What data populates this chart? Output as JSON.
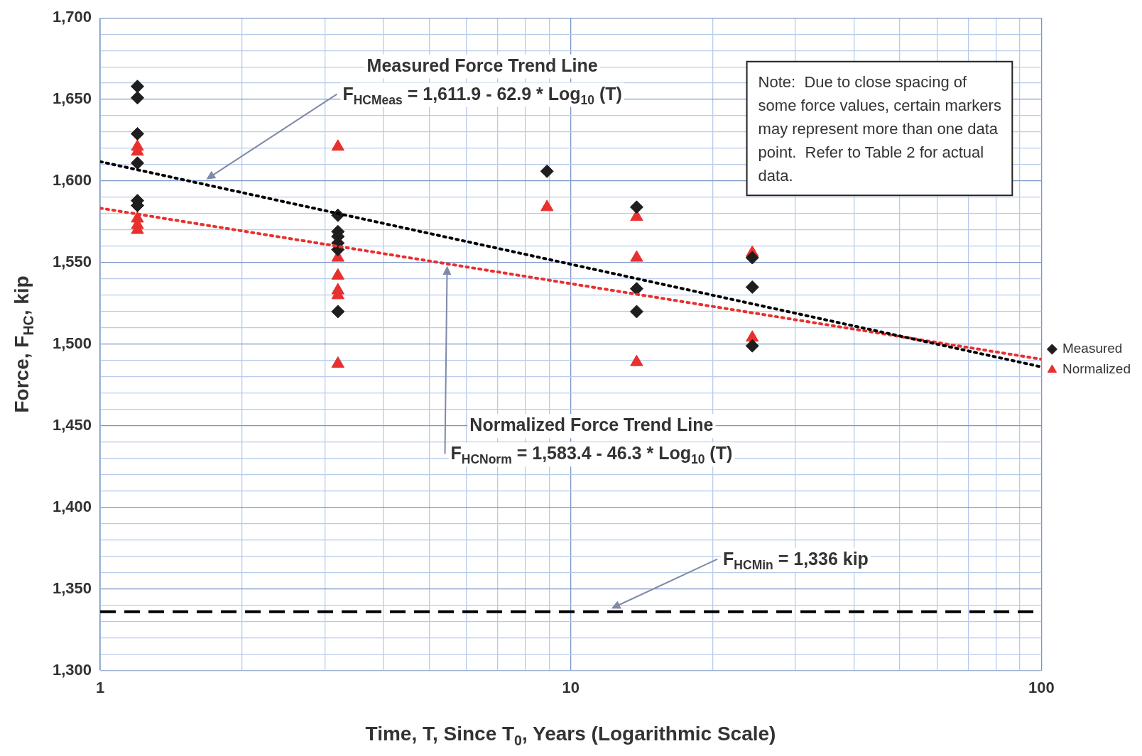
{
  "chart_data": {
    "type": "scatter",
    "xlabel": "Time, T, Since T$_{0}$, Years (Logarithmic Scale)",
    "ylabel": "Force, F$_{HC}$, kip",
    "log": "x",
    "grid": true,
    "legend": "right",
    "xlim": [
      1,
      100
    ],
    "ylim": [
      1300,
      1700
    ],
    "xticks": [
      1,
      {
        "value": 2,
        "label": null
      },
      {
        "value": 3,
        "label": null
      },
      {
        "value": 4,
        "label": null
      },
      {
        "value": 5,
        "label": null
      },
      {
        "value": 6,
        "label": null
      },
      {
        "value": 7,
        "label": null
      },
      {
        "value": 8,
        "label": null
      },
      {
        "value": 9,
        "label": null
      },
      10,
      {
        "value": 20,
        "label": null
      },
      {
        "value": 30,
        "label": null
      },
      {
        "value": 40,
        "label": null
      },
      {
        "value": 50,
        "label": null
      },
      {
        "value": 60,
        "label": null
      },
      {
        "value": 70,
        "label": null
      },
      {
        "value": 80,
        "label": null
      },
      {
        "value": 90,
        "label": null
      },
      100
    ],
    "yticks": [
      {
        "value": 1300,
        "label": "1,300"
      },
      {
        "value": 1310,
        "label": null
      },
      {
        "value": 1320,
        "label": null
      },
      {
        "value": 1330,
        "label": null
      },
      {
        "value": 1340,
        "label": null
      },
      {
        "value": 1350,
        "label": "1,350"
      },
      {
        "value": 1360,
        "label": null
      },
      {
        "value": 1370,
        "label": null
      },
      {
        "value": 1380,
        "label": null
      },
      {
        "value": 1390,
        "label": null
      },
      {
        "value": 1400,
        "label": "1,400"
      },
      {
        "value": 1410,
        "label": null
      },
      {
        "value": 1420,
        "label": null
      },
      {
        "value": 1430,
        "label": null
      },
      {
        "value": 1440,
        "label": null
      },
      {
        "value": 1450,
        "label": "1,450"
      },
      {
        "value": 1460,
        "label": null
      },
      {
        "value": 1470,
        "label": null
      },
      {
        "value": 1480,
        "label": null
      },
      {
        "value": 1490,
        "label": null
      },
      {
        "value": 1500,
        "label": "1,500"
      },
      {
        "value": 1510,
        "label": null
      },
      {
        "value": 1520,
        "label": null
      },
      {
        "value": 1530,
        "label": null
      },
      {
        "value": 1540,
        "label": null
      },
      {
        "value": 1550,
        "label": "1,550"
      },
      {
        "value": 1560,
        "label": null
      },
      {
        "value": 1570,
        "label": null
      },
      {
        "value": 1580,
        "label": null
      },
      {
        "value": 1590,
        "label": null
      },
      {
        "value": 1600,
        "label": "1,600"
      },
      {
        "value": 1610,
        "label": null
      },
      {
        "value": 1620,
        "label": null
      },
      {
        "value": 1630,
        "label": null
      },
      {
        "value": 1640,
        "label": null
      },
      {
        "value": 1650,
        "label": "1,650"
      },
      {
        "value": 1660,
        "label": null
      },
      {
        "value": 1670,
        "label": null
      },
      {
        "value": 1680,
        "label": null
      },
      {
        "value": 1690,
        "label": null
      },
      {
        "value": 1700,
        "label": "1,700"
      }
    ],
    "series": [
      {
        "type": "line",
        "color": "#000000",
        "line_style": "dotted",
        "marker": "none",
        "x": [
          1,
          100
        ],
        "values": [
          1611.9,
          1486.1
        ]
      },
      {
        "type": "line",
        "color": "#e8302e",
        "line_style": "dotted",
        "marker": "none",
        "x": [
          1,
          100
        ],
        "values": [
          1583.4,
          1490.8
        ]
      },
      {
        "name": "Measured",
        "type": "scatter",
        "color": "#1e1e1e",
        "marker": "diamond",
        "x": [
          1.2,
          1.2,
          1.2,
          1.2,
          1.2,
          1.2,
          3.2,
          3.2,
          3.2,
          3.2,
          3.2,
          3.2,
          8.9,
          13.8,
          13.8,
          13.8,
          24.3,
          24.3,
          24.3
        ],
        "values": [
          1658,
          1651,
          1629,
          1611,
          1588,
          1585,
          1579,
          1569,
          1566,
          1562,
          1558,
          1520,
          1606,
          1584,
          1534,
          1520,
          1553,
          1535,
          1499
        ]
      },
      {
        "name": "Normalized",
        "type": "scatter",
        "color": "#e8302e",
        "marker": "triangle",
        "x": [
          1.2,
          1.2,
          1.2,
          1.2,
          1.2,
          3.2,
          3.2,
          3.2,
          3.2,
          3.2,
          3.2,
          8.9,
          13.8,
          13.8,
          13.8,
          24.3,
          24.3
        ],
        "values": [
          1621,
          1618,
          1577,
          1573,
          1570,
          1621,
          1553,
          1542,
          1533,
          1530,
          1488,
          1584,
          1578,
          1553,
          1489,
          1556,
          1504
        ]
      }
    ],
    "ref_lines": [
      {
        "axis": "y",
        "value": 1336,
        "color": "#000000",
        "line_style": "dashed"
      }
    ],
    "annotations": [
      "Measured Force Trend Line\nF$_{HCMeas}$ = 1,611.9 - 62.9 * Log$_{10}$ (T)",
      "Normalized Force Trend Line\nF$_{HCNorm}$ = 1,583.4 - 46.3 * Log$_{10}$ (T)",
      "F$_{HCMin}$ = 1,336 kip",
      "Note:  Due to close spacing of some force values, certain markers may represent more than one data point.  Refer to Table 2 for actual data."
    ]
  }
}
